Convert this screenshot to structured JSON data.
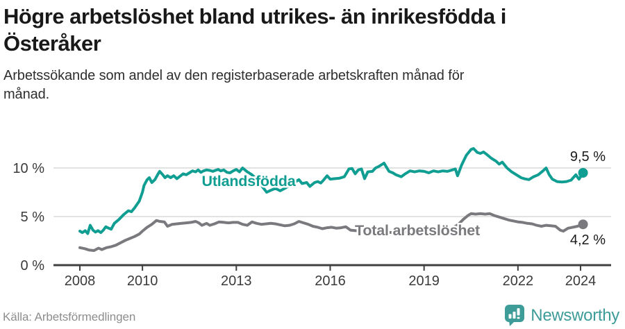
{
  "header": {
    "title": "Högre arbetslöshet bland utrikes- än inrikesfödda i\nÖsteråker",
    "subtitle": "Arbetssökande som andel av den registerbaserade arbetskraften månad för\nmånad."
  },
  "footer": {
    "source": "Källa: Arbetsförmedlingen",
    "brand": "Newsworthy"
  },
  "colors": {
    "series_foreign": "#119e92",
    "series_total": "#7a7a7e",
    "grid": "#d9d9d9",
    "axis": "#3f3f3f",
    "tick_label": "#3a3a3a",
    "end_label": "#1a1a1a",
    "title": "#191919",
    "subtitle": "#2e2e2e",
    "source": "#8d8d8d",
    "brand": "#3e9c98"
  },
  "chart_data": {
    "type": "line",
    "title": "Högre arbetslöshet bland utrikes- än inrikesfödda i Österåker",
    "subtitle": "Arbetssökande som andel av den registerbaserade arbetskraften månad för månad.",
    "xlabel": "",
    "ylabel": "",
    "xlim": [
      2007.15,
      2025.05
    ],
    "ylim": [
      0,
      13
    ],
    "grid": "horizontal",
    "legend_position": "inline-labels",
    "x_ticks": [
      {
        "value": 2008,
        "label": "2008"
      },
      {
        "value": 2010,
        "label": "2010"
      },
      {
        "value": 2013,
        "label": "2013"
      },
      {
        "value": 2016,
        "label": "2016"
      },
      {
        "value": 2019,
        "label": "2019"
      },
      {
        "value": 2022,
        "label": "2022"
      },
      {
        "value": 2024,
        "label": "2024"
      }
    ],
    "y_ticks": [
      {
        "value": 0,
        "label": "0 %"
      },
      {
        "value": 5,
        "label": "5 %"
      },
      {
        "value": 10,
        "label": "10 %"
      }
    ],
    "series": [
      {
        "name": "Utlandsfödda",
        "color": "#119e92",
        "end_label": "9,5 %",
        "end_value": 9.5,
        "points": [
          [
            2008.0,
            3.5
          ],
          [
            2008.08,
            3.35
          ],
          [
            2008.17,
            3.55
          ],
          [
            2008.25,
            3.25
          ],
          [
            2008.33,
            4.1
          ],
          [
            2008.42,
            3.6
          ],
          [
            2008.5,
            3.4
          ],
          [
            2008.58,
            3.55
          ],
          [
            2008.67,
            3.35
          ],
          [
            2008.75,
            3.6
          ],
          [
            2008.83,
            3.95
          ],
          [
            2008.92,
            3.8
          ],
          [
            2009.0,
            3.7
          ],
          [
            2009.1,
            4.3
          ],
          [
            2009.25,
            4.7
          ],
          [
            2009.4,
            5.2
          ],
          [
            2009.55,
            5.6
          ],
          [
            2009.65,
            5.5
          ],
          [
            2009.75,
            5.9
          ],
          [
            2009.9,
            6.6
          ],
          [
            2010.0,
            7.5
          ],
          [
            2010.05,
            8.2
          ],
          [
            2010.15,
            8.8
          ],
          [
            2010.22,
            9.0
          ],
          [
            2010.3,
            8.5
          ],
          [
            2010.4,
            8.8
          ],
          [
            2010.5,
            9.4
          ],
          [
            2010.55,
            9.65
          ],
          [
            2010.65,
            9.3
          ],
          [
            2010.72,
            9.0
          ],
          [
            2010.8,
            9.2
          ],
          [
            2010.9,
            9.0
          ],
          [
            2011.0,
            9.2
          ],
          [
            2011.1,
            8.9
          ],
          [
            2011.2,
            9.15
          ],
          [
            2011.3,
            9.4
          ],
          [
            2011.4,
            9.3
          ],
          [
            2011.5,
            9.5
          ],
          [
            2011.6,
            9.7
          ],
          [
            2011.7,
            9.6
          ],
          [
            2011.78,
            9.8
          ],
          [
            2011.87,
            9.55
          ],
          [
            2011.95,
            9.7
          ],
          [
            2012.05,
            9.8
          ],
          [
            2012.15,
            9.75
          ],
          [
            2012.25,
            9.65
          ],
          [
            2012.33,
            9.75
          ],
          [
            2012.42,
            9.85
          ],
          [
            2012.5,
            9.7
          ],
          [
            2012.6,
            9.8
          ],
          [
            2012.7,
            9.55
          ],
          [
            2012.8,
            9.5
          ],
          [
            2012.9,
            9.7
          ],
          [
            2013.0,
            9.85
          ],
          [
            2013.1,
            9.6
          ],
          [
            2013.2,
            10.0
          ],
          [
            2013.35,
            9.6
          ],
          [
            2013.5,
            9.3
          ],
          [
            2013.7,
            8.7
          ],
          [
            2013.85,
            8.0
          ],
          [
            2013.97,
            7.5
          ],
          [
            2014.1,
            7.7
          ],
          [
            2014.25,
            7.9
          ],
          [
            2014.4,
            7.65
          ],
          [
            2014.55,
            7.9
          ],
          [
            2014.7,
            8.2
          ],
          [
            2014.85,
            8.5
          ],
          [
            2015.0,
            8.8
          ],
          [
            2015.1,
            8.4
          ],
          [
            2015.25,
            8.5
          ],
          [
            2015.35,
            8.1
          ],
          [
            2015.5,
            8.5
          ],
          [
            2015.6,
            8.6
          ],
          [
            2015.7,
            8.45
          ],
          [
            2015.8,
            8.8
          ],
          [
            2015.9,
            9.2
          ],
          [
            2016.0,
            8.85
          ],
          [
            2016.15,
            8.9
          ],
          [
            2016.3,
            8.95
          ],
          [
            2016.45,
            9.1
          ],
          [
            2016.6,
            9.9
          ],
          [
            2016.7,
            9.95
          ],
          [
            2016.8,
            9.4
          ],
          [
            2016.9,
            9.8
          ],
          [
            2017.0,
            9.9
          ],
          [
            2017.1,
            8.9
          ],
          [
            2017.2,
            9.6
          ],
          [
            2017.35,
            9.65
          ],
          [
            2017.45,
            10.0
          ],
          [
            2017.55,
            10.15
          ],
          [
            2017.72,
            10.5
          ],
          [
            2017.88,
            9.65
          ],
          [
            2018.0,
            9.5
          ],
          [
            2018.1,
            9.3
          ],
          [
            2018.27,
            9.1
          ],
          [
            2018.4,
            9.4
          ],
          [
            2018.55,
            9.7
          ],
          [
            2018.7,
            9.6
          ],
          [
            2018.85,
            9.7
          ],
          [
            2019.0,
            9.65
          ],
          [
            2019.15,
            9.5
          ],
          [
            2019.3,
            9.7
          ],
          [
            2019.45,
            9.6
          ],
          [
            2019.6,
            9.7
          ],
          [
            2019.75,
            9.65
          ],
          [
            2019.9,
            9.8
          ],
          [
            2020.0,
            9.9
          ],
          [
            2020.07,
            9.2
          ],
          [
            2020.2,
            10.3
          ],
          [
            2020.35,
            11.3
          ],
          [
            2020.5,
            11.9
          ],
          [
            2020.58,
            12.0
          ],
          [
            2020.7,
            11.6
          ],
          [
            2020.8,
            11.5
          ],
          [
            2020.9,
            11.65
          ],
          [
            2021.0,
            11.4
          ],
          [
            2021.15,
            11.0
          ],
          [
            2021.3,
            10.7
          ],
          [
            2021.4,
            10.4
          ],
          [
            2021.5,
            10.6
          ],
          [
            2021.65,
            10.0
          ],
          [
            2021.8,
            9.6
          ],
          [
            2021.95,
            9.3
          ],
          [
            2022.1,
            9.0
          ],
          [
            2022.2,
            8.9
          ],
          [
            2022.35,
            8.8
          ],
          [
            2022.5,
            9.1
          ],
          [
            2022.65,
            9.3
          ],
          [
            2022.8,
            9.7
          ],
          [
            2022.9,
            10.0
          ],
          [
            2023.0,
            9.3
          ],
          [
            2023.1,
            8.85
          ],
          [
            2023.25,
            8.6
          ],
          [
            2023.4,
            8.55
          ],
          [
            2023.55,
            8.6
          ],
          [
            2023.7,
            8.75
          ],
          [
            2023.85,
            9.3
          ],
          [
            2023.95,
            8.85
          ],
          [
            2024.08,
            9.5
          ]
        ]
      },
      {
        "name": "Total arbetslöshet",
        "color": "#7a7a7e",
        "end_label": "4,2 %",
        "end_value": 4.2,
        "points": [
          [
            2008.0,
            1.8
          ],
          [
            2008.15,
            1.7
          ],
          [
            2008.3,
            1.55
          ],
          [
            2008.45,
            1.5
          ],
          [
            2008.6,
            1.75
          ],
          [
            2008.7,
            1.6
          ],
          [
            2008.85,
            1.8
          ],
          [
            2009.0,
            1.9
          ],
          [
            2009.15,
            2.05
          ],
          [
            2009.3,
            2.3
          ],
          [
            2009.45,
            2.55
          ],
          [
            2009.6,
            2.75
          ],
          [
            2009.75,
            2.95
          ],
          [
            2009.9,
            3.2
          ],
          [
            2010.0,
            3.5
          ],
          [
            2010.15,
            3.9
          ],
          [
            2010.3,
            4.2
          ],
          [
            2010.45,
            4.6
          ],
          [
            2010.55,
            4.5
          ],
          [
            2010.7,
            4.45
          ],
          [
            2010.8,
            4.0
          ],
          [
            2010.95,
            4.2
          ],
          [
            2011.1,
            4.25
          ],
          [
            2011.25,
            4.3
          ],
          [
            2011.4,
            4.35
          ],
          [
            2011.55,
            4.4
          ],
          [
            2011.7,
            4.5
          ],
          [
            2011.8,
            4.35
          ],
          [
            2011.9,
            4.1
          ],
          [
            2012.05,
            4.3
          ],
          [
            2012.15,
            4.1
          ],
          [
            2012.3,
            4.25
          ],
          [
            2012.45,
            4.45
          ],
          [
            2012.6,
            4.4
          ],
          [
            2012.75,
            4.35
          ],
          [
            2012.9,
            4.4
          ],
          [
            2013.05,
            4.4
          ],
          [
            2013.2,
            4.2
          ],
          [
            2013.35,
            4.1
          ],
          [
            2013.5,
            4.45
          ],
          [
            2013.65,
            4.3
          ],
          [
            2013.8,
            4.2
          ],
          [
            2013.95,
            4.25
          ],
          [
            2014.1,
            4.3
          ],
          [
            2014.25,
            4.25
          ],
          [
            2014.4,
            4.15
          ],
          [
            2014.55,
            4.05
          ],
          [
            2014.7,
            4.1
          ],
          [
            2014.85,
            4.25
          ],
          [
            2015.0,
            4.5
          ],
          [
            2015.15,
            4.35
          ],
          [
            2015.3,
            4.2
          ],
          [
            2015.45,
            4.0
          ],
          [
            2015.6,
            3.9
          ],
          [
            2015.75,
            3.75
          ],
          [
            2015.9,
            3.85
          ],
          [
            2016.05,
            3.9
          ],
          [
            2016.2,
            3.8
          ],
          [
            2016.35,
            3.85
          ],
          [
            2016.5,
            3.95
          ],
          [
            2016.65,
            3.6
          ],
          [
            2016.8,
            3.55
          ],
          [
            2017.0,
            3.5
          ],
          [
            2017.2,
            3.5
          ],
          [
            2017.4,
            3.45
          ],
          [
            2017.6,
            3.4
          ],
          [
            2017.8,
            3.4
          ],
          [
            2018.0,
            3.35
          ],
          [
            2018.2,
            3.35
          ],
          [
            2018.4,
            3.4
          ],
          [
            2018.6,
            3.45
          ],
          [
            2018.8,
            3.45
          ],
          [
            2019.0,
            3.5
          ],
          [
            2019.2,
            3.55
          ],
          [
            2019.4,
            3.6
          ],
          [
            2019.6,
            3.65
          ],
          [
            2019.8,
            3.75
          ],
          [
            2019.95,
            3.9
          ],
          [
            2020.1,
            4.2
          ],
          [
            2020.25,
            4.7
          ],
          [
            2020.4,
            5.1
          ],
          [
            2020.5,
            5.3
          ],
          [
            2020.65,
            5.25
          ],
          [
            2020.8,
            5.3
          ],
          [
            2020.95,
            5.25
          ],
          [
            2021.1,
            5.3
          ],
          [
            2021.25,
            5.1
          ],
          [
            2021.4,
            4.95
          ],
          [
            2021.55,
            4.8
          ],
          [
            2021.7,
            4.65
          ],
          [
            2021.85,
            4.55
          ],
          [
            2022.0,
            4.45
          ],
          [
            2022.15,
            4.4
          ],
          [
            2022.3,
            4.3
          ],
          [
            2022.45,
            4.25
          ],
          [
            2022.6,
            4.1
          ],
          [
            2022.75,
            4.0
          ],
          [
            2022.9,
            4.1
          ],
          [
            2023.05,
            4.05
          ],
          [
            2023.2,
            4.0
          ],
          [
            2023.35,
            3.6
          ],
          [
            2023.45,
            3.5
          ],
          [
            2023.6,
            3.8
          ],
          [
            2023.75,
            3.9
          ],
          [
            2023.9,
            4.0
          ],
          [
            2024.08,
            4.2
          ]
        ]
      }
    ]
  }
}
